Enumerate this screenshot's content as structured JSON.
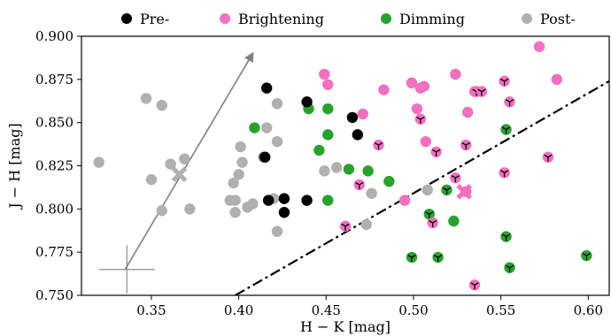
{
  "chart_data": {
    "type": "scatter",
    "title": "",
    "xlabel": "H − K [mag]",
    "ylabel": "J − H [mag]",
    "xlim": [
      0.31,
      0.612
    ],
    "ylim": [
      0.75,
      0.9
    ],
    "xticks": [
      "0.35",
      "0.40",
      "0.45",
      "0.50",
      "0.55",
      "0.60"
    ],
    "yticks": [
      "0.750",
      "0.775",
      "0.800",
      "0.825",
      "0.850",
      "0.875",
      "0.900"
    ],
    "grid": false,
    "legend_position": "top, outside plot, single row",
    "legend": [
      "Pre-",
      "Brightening",
      "Dimming",
      "Post-"
    ],
    "colors": {
      "Pre-": "#000000",
      "Brightening": "#f36fc0",
      "Dimming": "#27a22e",
      "Post-": "#b0b0b0"
    },
    "series": [
      {
        "name": "Pre-",
        "color": "#000000",
        "points": [
          [
            0.416,
            0.87
          ],
          [
            0.415,
            0.83
          ],
          [
            0.417,
            0.805
          ],
          [
            0.426,
            0.806
          ],
          [
            0.426,
            0.798
          ],
          [
            0.439,
            0.862
          ],
          [
            0.439,
            0.805
          ],
          [
            0.465,
            0.853
          ],
          [
            0.468,
            0.843
          ]
        ]
      },
      {
        "name": "Brightening",
        "color": "#f36fc0",
        "points": [
          [
            0.449,
            0.878
          ],
          [
            0.451,
            0.872
          ],
          [
            0.471,
            0.855
          ],
          [
            0.483,
            0.869
          ],
          [
            0.499,
            0.873
          ],
          [
            0.504,
            0.87
          ],
          [
            0.506,
            0.871
          ],
          [
            0.502,
            0.858
          ],
          [
            0.507,
            0.839
          ],
          [
            0.524,
            0.878
          ],
          [
            0.531,
            0.856
          ],
          [
            0.535,
            0.868
          ],
          [
            0.572,
            0.894
          ],
          [
            0.582,
            0.875
          ],
          [
            0.495,
            0.805
          ],
          [
            0.53,
            0.81
          ]
        ],
        "marked_points": [
          [
            0.461,
            0.79
          ],
          [
            0.469,
            0.814
          ],
          [
            0.48,
            0.837
          ],
          [
            0.504,
            0.852
          ],
          [
            0.511,
            0.792
          ],
          [
            0.513,
            0.833
          ],
          [
            0.524,
            0.818
          ],
          [
            0.53,
            0.837
          ],
          [
            0.535,
            0.756
          ],
          [
            0.536,
            0.868
          ],
          [
            0.539,
            0.868
          ],
          [
            0.552,
            0.874
          ],
          [
            0.552,
            0.821
          ],
          [
            0.555,
            0.862
          ],
          [
            0.577,
            0.83
          ]
        ],
        "cross_marker": [
          0.529,
          0.81
        ]
      },
      {
        "name": "Dimming",
        "color": "#27a22e",
        "points": [
          [
            0.409,
            0.847
          ],
          [
            0.44,
            0.858
          ],
          [
            0.451,
            0.858
          ],
          [
            0.451,
            0.843
          ],
          [
            0.446,
            0.834
          ],
          [
            0.451,
            0.805
          ],
          [
            0.463,
            0.823
          ],
          [
            0.474,
            0.822
          ],
          [
            0.486,
            0.816
          ],
          [
            0.523,
            0.793
          ]
        ],
        "marked_points": [
          [
            0.499,
            0.772
          ],
          [
            0.509,
            0.797
          ],
          [
            0.514,
            0.772
          ],
          [
            0.519,
            0.811
          ],
          [
            0.553,
            0.846
          ],
          [
            0.553,
            0.784
          ],
          [
            0.555,
            0.766
          ],
          [
            0.599,
            0.773
          ]
        ]
      },
      {
        "name": "Post-",
        "color": "#b0b0b0",
        "points": [
          [
            0.32,
            0.827
          ],
          [
            0.347,
            0.864
          ],
          [
            0.356,
            0.86
          ],
          [
            0.35,
            0.817
          ],
          [
            0.361,
            0.826
          ],
          [
            0.369,
            0.829
          ],
          [
            0.356,
            0.799
          ],
          [
            0.372,
            0.8
          ],
          [
            0.395,
            0.805
          ],
          [
            0.398,
            0.805
          ],
          [
            0.398,
            0.798
          ],
          [
            0.405,
            0.801
          ],
          [
            0.408,
            0.803
          ],
          [
            0.397,
            0.815
          ],
          [
            0.4,
            0.82
          ],
          [
            0.402,
            0.827
          ],
          [
            0.401,
            0.836
          ],
          [
            0.414,
            0.83
          ],
          [
            0.416,
            0.847
          ],
          [
            0.422,
            0.861
          ],
          [
            0.422,
            0.839
          ],
          [
            0.42,
            0.806
          ],
          [
            0.422,
            0.787
          ],
          [
            0.449,
            0.822
          ],
          [
            0.456,
            0.824
          ],
          [
            0.476,
            0.809
          ],
          [
            0.473,
            0.791
          ],
          [
            0.508,
            0.811
          ]
        ],
        "cross_marker": [
          0.366,
          0.82
        ]
      }
    ],
    "reddening_arrow": {
      "from": [
        0.335,
        0.765
      ],
      "to": [
        0.408,
        0.89
      ]
    },
    "error_cross": {
      "center": [
        0.336,
        0.765
      ],
      "x_halfwidth": 0.016,
      "y_halfwidth": 0.014
    },
    "dividing_line": {
      "style": "dash-dot",
      "from": [
        0.398,
        0.75
      ],
      "to": [
        0.612,
        0.874
      ]
    }
  }
}
